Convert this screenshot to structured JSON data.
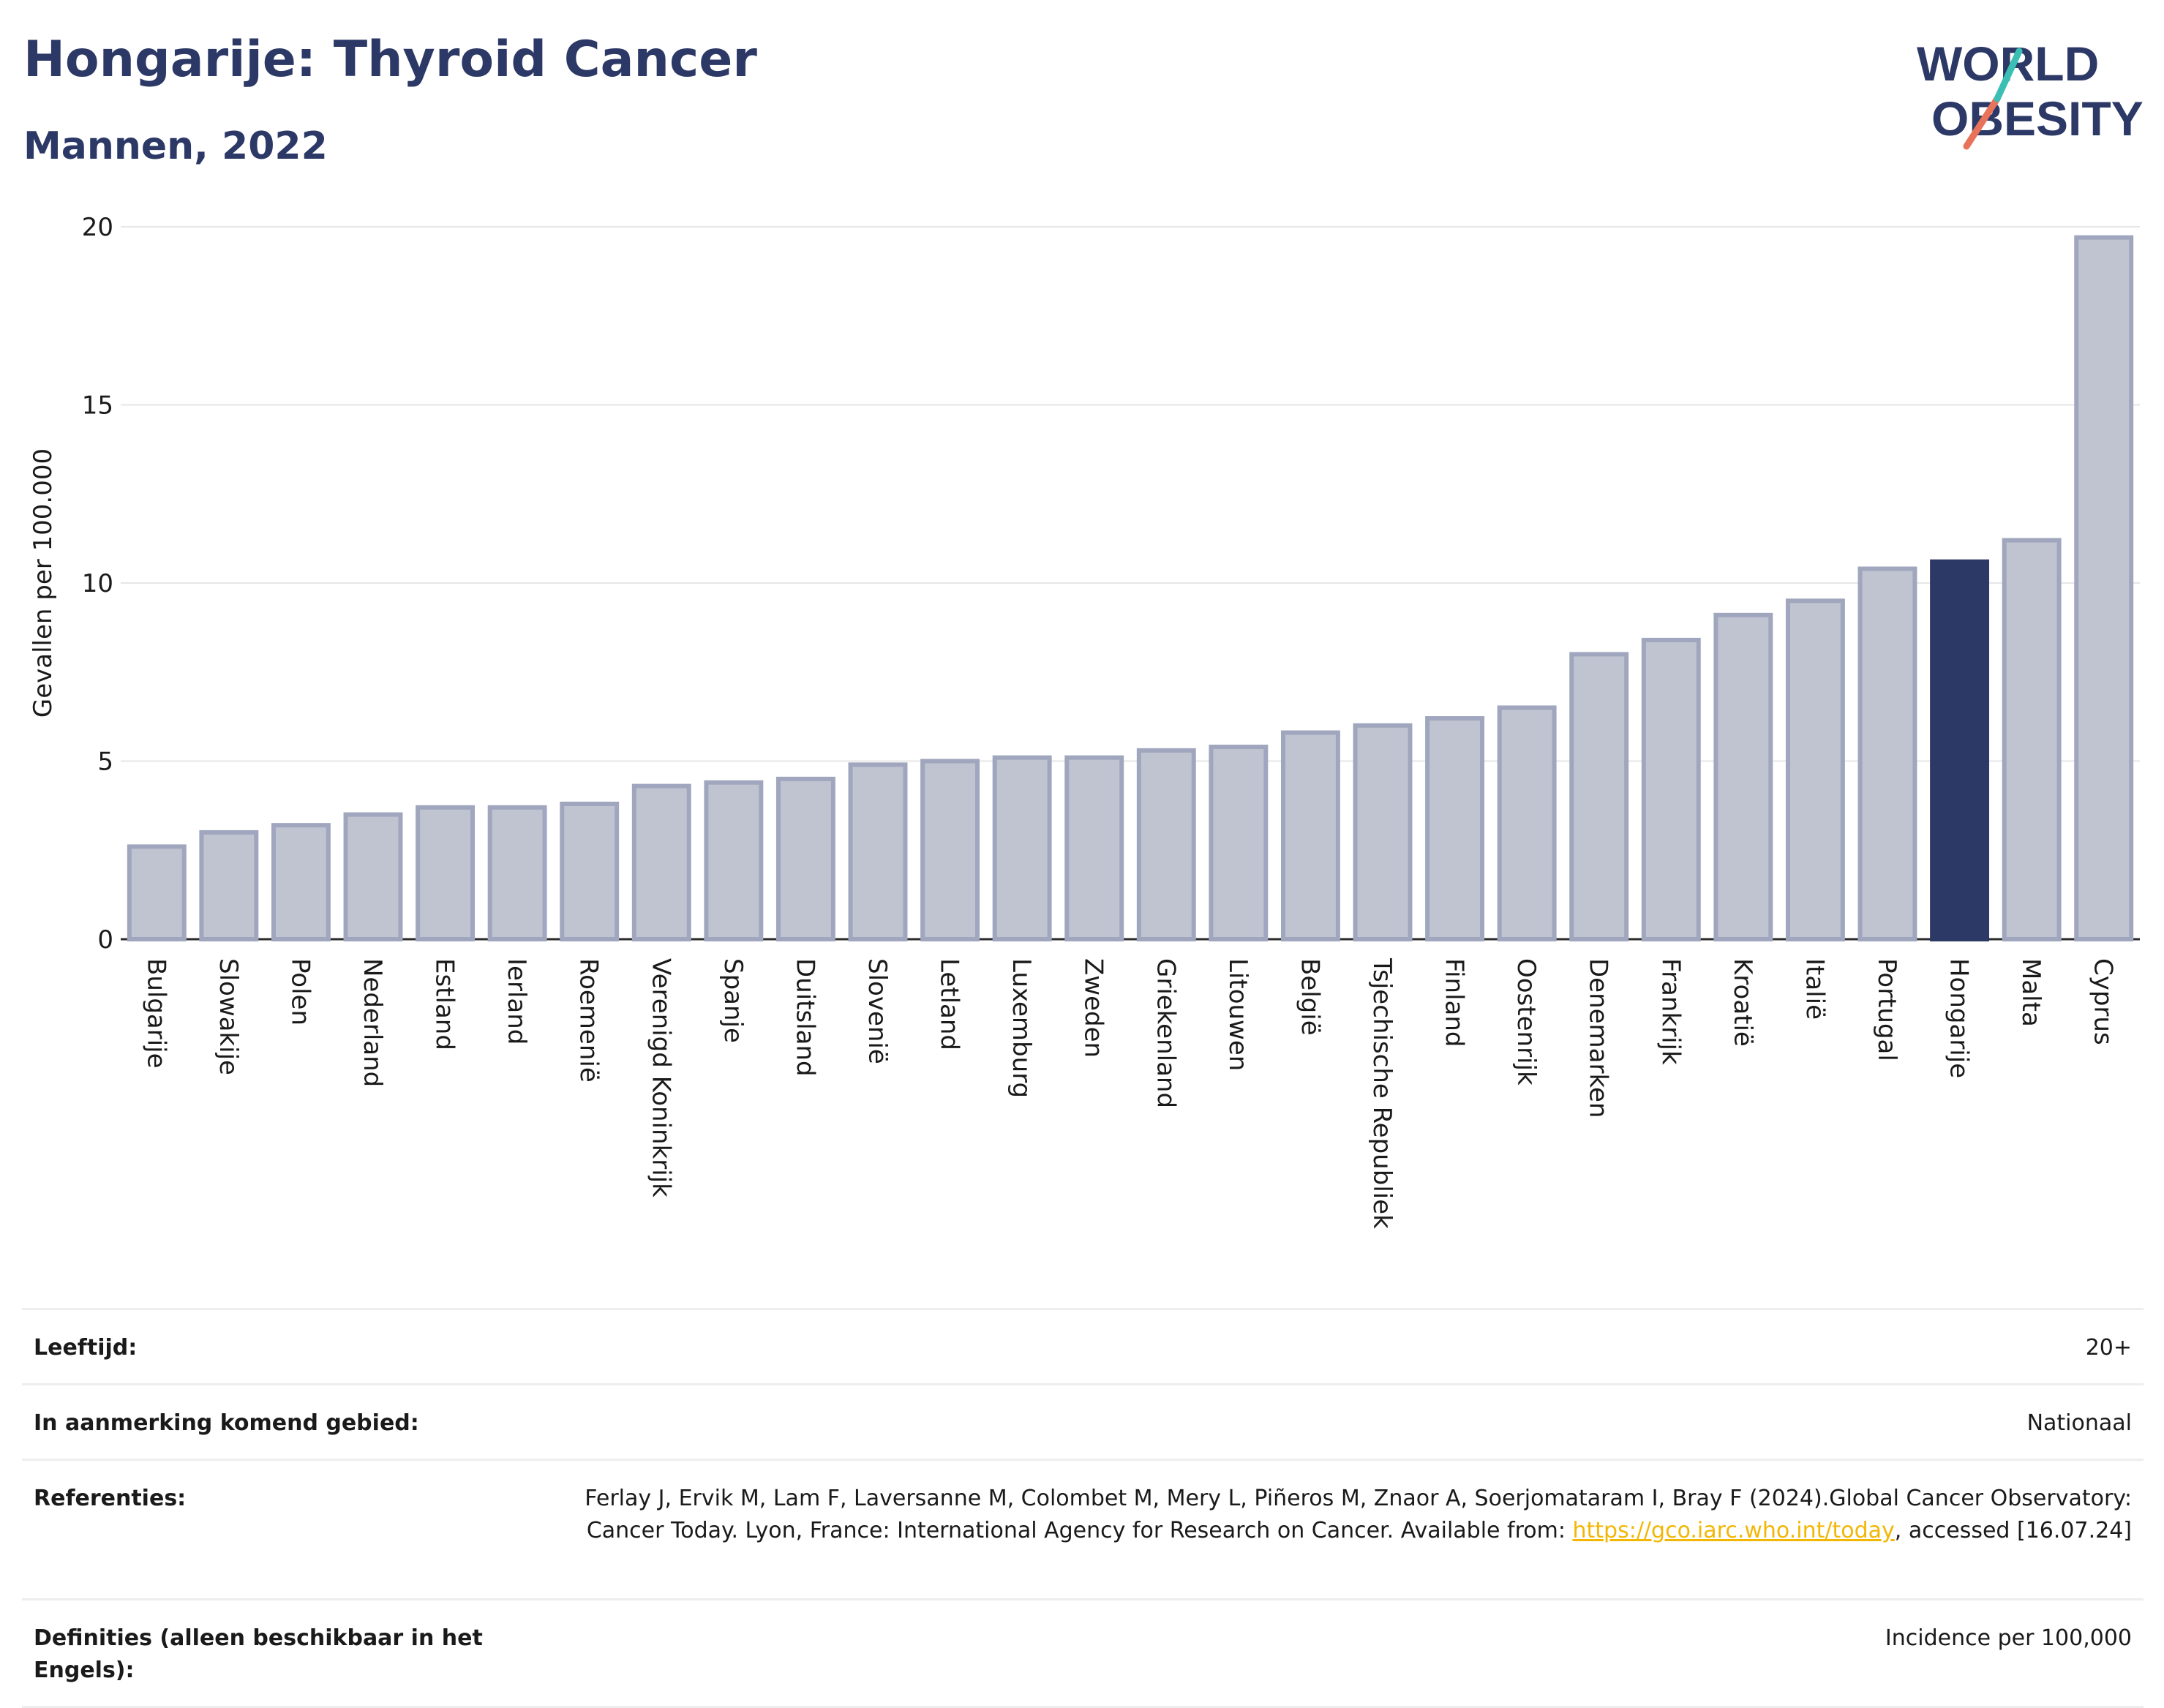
{
  "header": {
    "title": "Hongarije: Thyroid Cancer",
    "subtitle": "Mannen, 2022",
    "logo_line1": "WORLD",
    "logo_line2": "OBESITY"
  },
  "chart_data": {
    "type": "bar",
    "ylabel": "Gevallen per 100.000",
    "ylim": [
      0,
      20
    ],
    "yticks": [
      0,
      5,
      10,
      15,
      20
    ],
    "highlight": "Hongarije",
    "colors": {
      "bar": "#c0c3d0",
      "bar_border": "#a0a6bd",
      "highlight": "#2c3866"
    },
    "categories": [
      "Bulgarije",
      "Slowakije",
      "Polen",
      "Nederland",
      "Estland",
      "Ierland",
      "Roemenië",
      "Verenigd Koninkrijk",
      "Spanje",
      "Duitsland",
      "Slovenië",
      "Letland",
      "Luxemburg",
      "Zweden",
      "Griekenland",
      "Litouwen",
      "België",
      "Tsjechische Republiek",
      "Finland",
      "Oostenrijk",
      "Denemarken",
      "Frankrijk",
      "Kroatië",
      "Italië",
      "Portugal",
      "Hongarije",
      "Malta",
      "Cyprus"
    ],
    "values": [
      2.6,
      3.0,
      3.2,
      3.5,
      3.7,
      3.7,
      3.8,
      4.3,
      4.4,
      4.5,
      4.9,
      5.0,
      5.1,
      5.1,
      5.3,
      5.4,
      5.8,
      6.0,
      6.2,
      6.5,
      8.0,
      8.4,
      9.1,
      9.5,
      10.4,
      10.6,
      11.2,
      19.7
    ]
  },
  "meta": {
    "age_label": "Leeftijd:",
    "age_value": "20+",
    "area_label": "In aanmerking komend gebied:",
    "area_value": "Nationaal",
    "ref_label": "Referenties:",
    "ref_text_1": "Ferlay J, Ervik M, Lam F, Laversanne M, Colombet M, Mery L, Piñeros M, Znaor A, Soerjomataram I, Bray F (2024).Global Cancer Observatory: Cancer Today. Lyon, France: International Agency for Research on Cancer. Available from: ",
    "ref_link": "https://gco.iarc.who.int/today",
    "ref_text_2": ", accessed [16.07.24]",
    "def_label": "Definities (alleen beschikbaar in het Engels):",
    "def_value": "Incidence per 100,000"
  }
}
